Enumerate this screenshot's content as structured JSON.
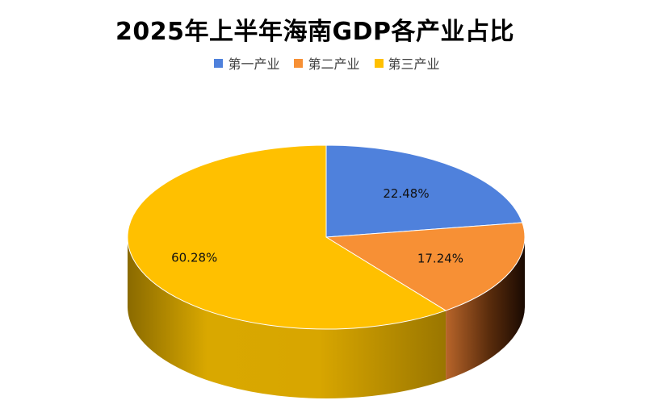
{
  "chart_data": {
    "type": "pie",
    "title": "2025年上半年海南GDP各产业占比",
    "categories": [
      "第一产业",
      "第二产业",
      "第三产业"
    ],
    "values": [
      22.48,
      17.24,
      60.28
    ],
    "labels": [
      "22.48%",
      "17.24%",
      "60.28%"
    ],
    "colors": [
      "#4f81dc",
      "#f79035",
      "#ffc000"
    ],
    "legend_position": "top",
    "style": "3d-pie"
  }
}
